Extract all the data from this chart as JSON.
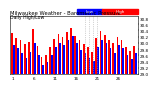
{
  "title": "Milwaukee Weather - Barometric Pressure",
  "subtitle": "Daily High/Low",
  "background_color": "#ffffff",
  "high_color": "#ff0000",
  "low_color": "#0000ff",
  "dotted_indices": [
    17,
    18,
    19,
    20
  ],
  "ylim": [
    29.0,
    30.85
  ],
  "yticks": [
    29.0,
    29.2,
    29.4,
    29.6,
    29.8,
    30.0,
    30.2,
    30.4,
    30.6,
    30.8
  ],
  "highs": [
    30.32,
    30.15,
    30.1,
    29.95,
    30.02,
    30.45,
    29.9,
    29.55,
    29.62,
    29.88,
    30.12,
    30.28,
    30.18,
    30.35,
    30.48,
    30.22,
    30.08,
    29.95,
    29.88,
    29.72,
    30.15,
    30.38,
    30.25,
    30.1,
    29.98,
    30.18,
    30.1,
    29.88,
    29.75,
    29.9
  ],
  "lows": [
    29.92,
    29.82,
    29.68,
    29.52,
    29.72,
    29.98,
    29.62,
    29.3,
    29.38,
    29.6,
    29.88,
    30.0,
    29.92,
    30.08,
    30.22,
    29.98,
    29.78,
    29.68,
    29.52,
    29.42,
    29.88,
    30.1,
    30.0,
    29.82,
    29.68,
    29.92,
    29.82,
    29.6,
    29.48,
    29.68
  ],
  "n_bars": 30,
  "bar_width": 0.4,
  "xlabel_fontsize": 3.0,
  "ylabel_fontsize": 3.0,
  "title_fontsize": 3.8,
  "legend_fontsize": 3.0
}
